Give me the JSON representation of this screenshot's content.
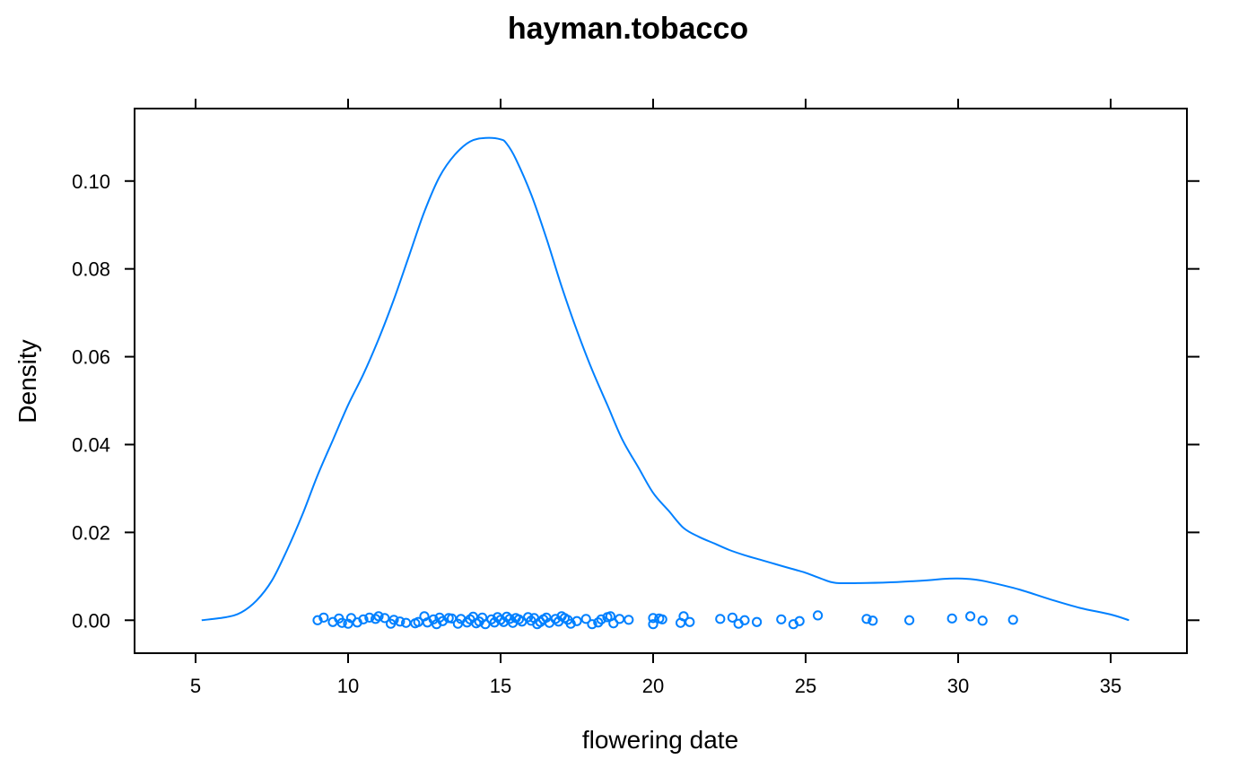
{
  "chart_data": {
    "type": "line",
    "title": "hayman.tobacco",
    "xlabel": "flowering date",
    "ylabel": "Density",
    "xlim": [
      3,
      37.5
    ],
    "ylim": [
      -0.0075,
      0.1165
    ],
    "xticks": [
      5,
      10,
      15,
      20,
      25,
      30,
      35
    ],
    "xtick_labels": [
      "5",
      "10",
      "15",
      "20",
      "25",
      "30",
      "35"
    ],
    "yticks": [
      0.0,
      0.02,
      0.04,
      0.06,
      0.08,
      0.1
    ],
    "ytick_labels": [
      "0.00",
      "0.02",
      "0.04",
      "0.06",
      "0.08",
      "0.10"
    ],
    "color": "#0080ff",
    "density_curve": {
      "x": [
        5.2,
        6,
        6.5,
        7,
        7.5,
        8,
        8.5,
        9,
        9.5,
        10,
        10.5,
        11,
        11.5,
        12,
        12.5,
        13,
        13.5,
        14,
        14.5,
        15,
        15.2,
        15.5,
        16,
        16.5,
        17,
        17.5,
        18,
        18.5,
        19,
        19.5,
        20,
        20.5,
        21,
        21.5,
        22,
        22.5,
        23,
        23.5,
        24,
        24.5,
        25,
        25.5,
        26,
        27,
        28,
        29,
        29.5,
        30,
        30.5,
        31,
        32,
        33,
        34,
        35,
        35.6
      ],
      "y": [
        0.0,
        0.0007,
        0.0018,
        0.0045,
        0.009,
        0.016,
        0.024,
        0.033,
        0.041,
        0.049,
        0.056,
        0.064,
        0.073,
        0.083,
        0.093,
        0.101,
        0.106,
        0.109,
        0.1098,
        0.1095,
        0.1085,
        0.105,
        0.097,
        0.087,
        0.076,
        0.066,
        0.057,
        0.049,
        0.041,
        0.035,
        0.029,
        0.025,
        0.021,
        0.019,
        0.0175,
        0.016,
        0.0148,
        0.0138,
        0.0128,
        0.0118,
        0.0108,
        0.0095,
        0.0085,
        0.0085,
        0.0087,
        0.0091,
        0.0094,
        0.0095,
        0.0093,
        0.0087,
        0.007,
        0.0048,
        0.0028,
        0.0013,
        0.0
      ]
    },
    "points": {
      "x": [
        9.0,
        9.2,
        9.5,
        9.7,
        9.8,
        10.0,
        10.1,
        10.3,
        10.5,
        10.7,
        10.9,
        11.0,
        11.2,
        11.4,
        11.5,
        11.7,
        11.9,
        12.2,
        12.3,
        12.5,
        12.6,
        12.8,
        12.9,
        13.0,
        13.1,
        13.3,
        13.4,
        13.6,
        13.7,
        13.9,
        14.0,
        14.1,
        14.2,
        14.3,
        14.4,
        14.5,
        14.7,
        14.8,
        14.9,
        15.0,
        15.1,
        15.2,
        15.3,
        15.4,
        15.5,
        15.6,
        15.7,
        15.9,
        16.0,
        16.1,
        16.2,
        16.3,
        16.4,
        16.5,
        16.6,
        16.8,
        16.9,
        17.0,
        17.1,
        17.2,
        17.3,
        17.5,
        17.8,
        18.0,
        18.2,
        18.3,
        18.5,
        18.6,
        18.7,
        18.9,
        19.2,
        20.0,
        20.0,
        20.2,
        20.3,
        20.9,
        21.0,
        21.2,
        22.2,
        22.6,
        22.8,
        23.0,
        23.4,
        24.2,
        24.6,
        24.8,
        25.4,
        27.0,
        27.2,
        28.4,
        29.8,
        30.4,
        30.8,
        31.8
      ],
      "y": [
        0.0,
        0.0006,
        -0.0004,
        0.0004,
        -0.0006,
        -0.0008,
        0.0005,
        -0.0005,
        0.0002,
        0.0006,
        0.0003,
        0.0009,
        0.0005,
        -0.0008,
        0.0001,
        -0.0003,
        -0.0006,
        -0.0007,
        -0.0004,
        0.0009,
        -0.0005,
        0.0002,
        -0.0009,
        0.0006,
        -0.0002,
        0.0005,
        0.0004,
        -0.0008,
        0.0003,
        -0.0005,
        0.0002,
        0.0008,
        -0.0007,
        -0.0003,
        0.0006,
        -0.0009,
        0.0002,
        -0.0005,
        0.0007,
        0.0001,
        -0.0004,
        0.0008,
        0.0003,
        -0.0006,
        0.0005,
        0.0002,
        -0.0003,
        0.0007,
        -0.0001,
        0.0005,
        -0.0009,
        -0.0004,
        0.0002,
        0.0006,
        -0.0006,
        0.0003,
        -0.0003,
        0.0009,
        0.0005,
        0.0001,
        -0.0008,
        -0.0002,
        0.0003,
        -0.0009,
        -0.0005,
        0.0002,
        0.0007,
        0.0009,
        -0.0007,
        0.0003,
        0.0001,
        0.0005,
        -0.0009,
        0.0004,
        0.0002,
        -0.0006,
        0.0009,
        -0.0004,
        0.0003,
        0.0006,
        -0.0008,
        0.0,
        -0.0004,
        0.0002,
        -0.0009,
        -0.0002,
        0.0011,
        0.0003,
        -0.0001,
        0.0,
        0.0004,
        0.0009,
        -0.0001,
        0.0001
      ]
    }
  }
}
